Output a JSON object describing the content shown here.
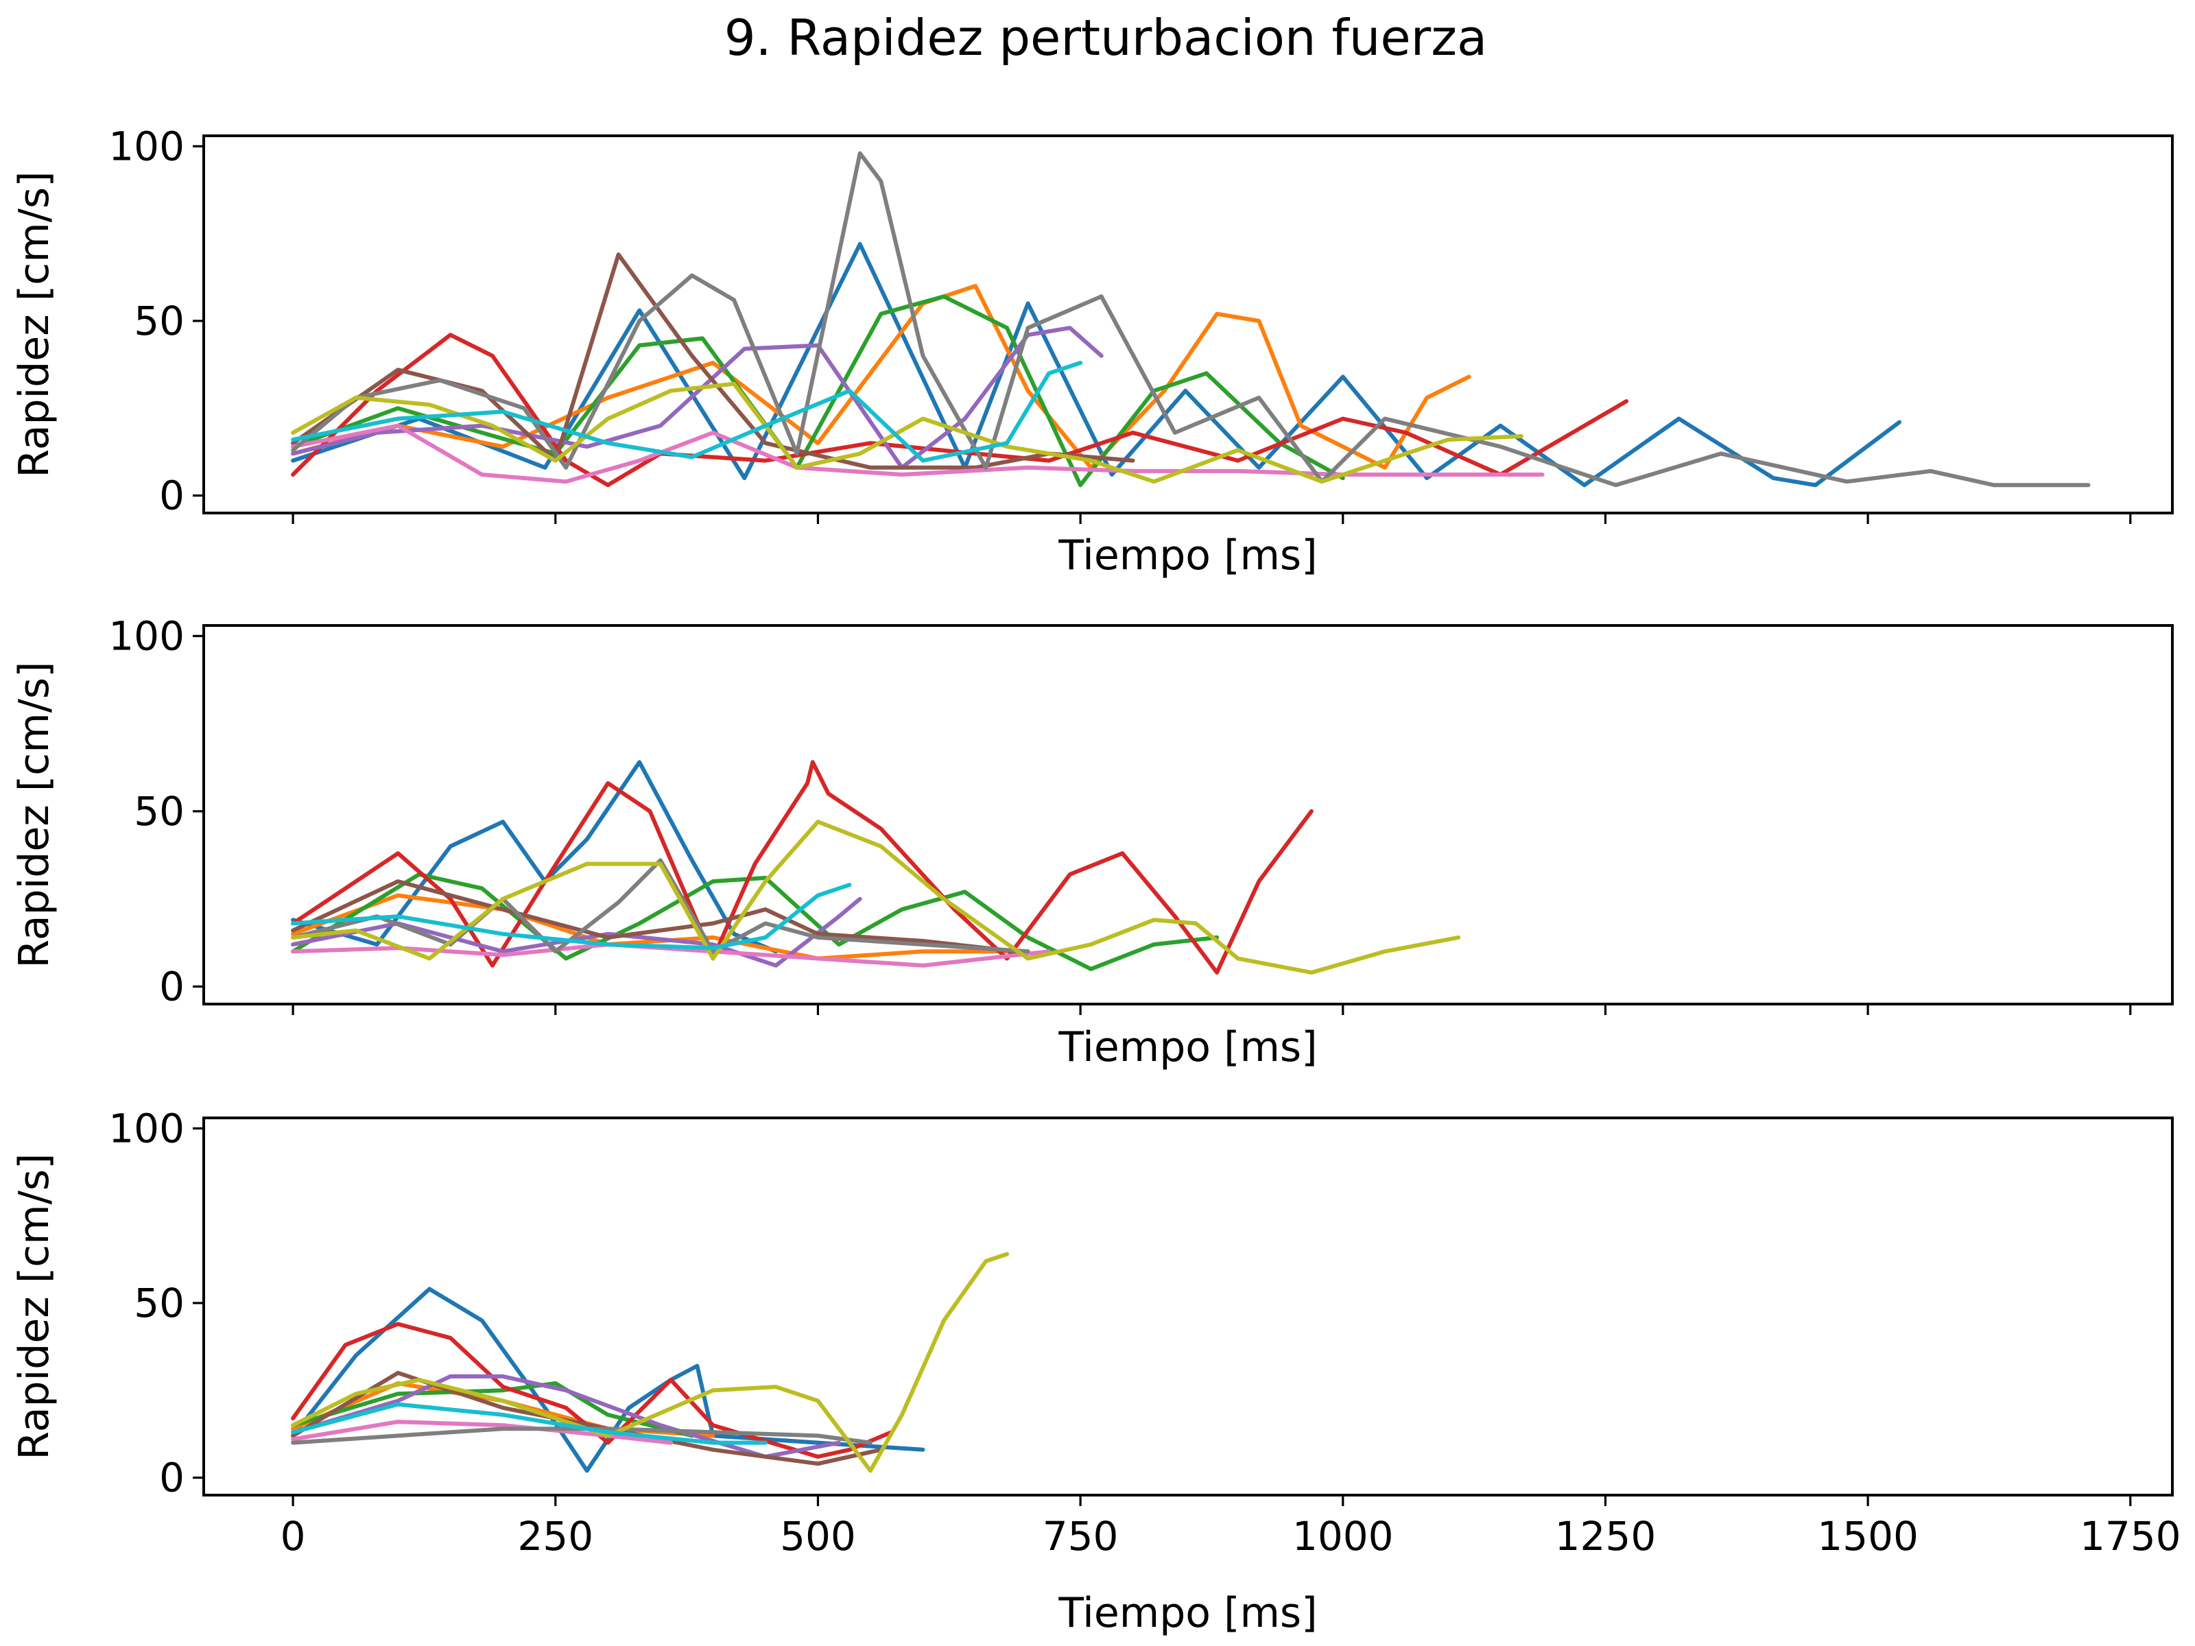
{
  "chart_data": {
    "type": "line",
    "title": "9. Rapidez perturbacion fuerza",
    "xlabel": "Tiempo [ms]",
    "ylabel": "Rapidez [cm/s]",
    "xlim": [
      -85,
      1790
    ],
    "ylim": [
      -5,
      103
    ],
    "x_ticks": [
      0,
      250,
      500,
      750,
      1000,
      1250,
      1500,
      1750
    ],
    "x_tick_labels": [
      "0",
      "250",
      "500",
      "750",
      "1000",
      "1250",
      "1500",
      "1750"
    ],
    "y_ticks": [
      0,
      50,
      100
    ],
    "y_tick_labels": [
      "0",
      "50",
      "100"
    ],
    "sharex": true,
    "grid": false,
    "panels": [
      {
        "series": [
          {
            "color": "#1f77b4",
            "x": [
              0,
              120,
              240,
              330,
              430,
              540,
              640,
              700,
              780,
              850,
              920,
              1000,
              1080,
              1150,
              1230,
              1320,
              1410,
              1450,
              1530
            ],
            "y": [
              10,
              22,
              8,
              53,
              5,
              72,
              8,
              55,
              6,
              30,
              8,
              34,
              5,
              20,
              3,
              22,
              5,
              3,
              21
            ]
          },
          {
            "color": "#ff7f0e",
            "x": [
              0,
              100,
              200,
              300,
              400,
              500,
              600,
              650,
              700,
              760,
              830,
              880,
              920,
              960,
              1040,
              1080,
              1120
            ],
            "y": [
              12,
              20,
              14,
              28,
              38,
              15,
              55,
              60,
              30,
              8,
              30,
              52,
              50,
              20,
              8,
              28,
              34
            ]
          },
          {
            "color": "#2ca02c",
            "x": [
              0,
              100,
              180,
              250,
              330,
              390,
              480,
              560,
              620,
              680,
              750,
              820,
              870,
              940,
              1000
            ],
            "y": [
              14,
              25,
              18,
              12,
              43,
              45,
              8,
              52,
              57,
              48,
              3,
              30,
              35,
              15,
              5
            ]
          },
          {
            "color": "#d62728",
            "x": [
              0,
              80,
              150,
              190,
              260,
              300,
              350,
              450,
              550,
              650,
              720,
              800,
              900,
              1000,
              1060,
              1150,
              1270
            ],
            "y": [
              6,
              30,
              46,
              40,
              10,
              3,
              12,
              10,
              15,
              12,
              10,
              18,
              10,
              22,
              18,
              6,
              27
            ]
          },
          {
            "color": "#9467bd",
            "x": [
              0,
              80,
              180,
              280,
              350,
              430,
              500,
              580,
              640,
              700,
              740,
              770
            ],
            "y": [
              12,
              18,
              20,
              14,
              20,
              42,
              43,
              8,
              22,
              46,
              48,
              40
            ]
          },
          {
            "color": "#8c564b",
            "x": [
              0,
              100,
              180,
              250,
              310,
              380,
              450,
              550,
              650,
              720,
              800
            ],
            "y": [
              15,
              36,
              30,
              10,
              69,
              40,
              15,
              8,
              8,
              12,
              10
            ]
          },
          {
            "color": "#e377c2",
            "x": [
              0,
              100,
              180,
              260,
              330,
              400,
              480,
              580,
              700,
              800,
              900,
              1000,
              1100,
              1190
            ],
            "y": [
              14,
              20,
              6,
              4,
              10,
              18,
              8,
              6,
              8,
              7,
              7,
              6,
              6,
              6
            ]
          },
          {
            "color": "#7f7f7f",
            "x": [
              0,
              60,
              140,
              220,
              260,
              330,
              380,
              420,
              480,
              540,
              560,
              600,
              660,
              700,
              770,
              840,
              920,
              980,
              1040,
              1150,
              1260,
              1360,
              1480,
              1560,
              1620,
              1710
            ],
            "y": [
              13,
              28,
              33,
              25,
              8,
              50,
              63,
              56,
              12,
              98,
              90,
              40,
              8,
              48,
              57,
              18,
              28,
              4,
              22,
              14,
              3,
              12,
              4,
              7,
              3,
              3
            ]
          },
          {
            "color": "#bcbd22",
            "x": [
              0,
              60,
              130,
              190,
              250,
              300,
              360,
              420,
              480,
              540,
              600,
              680,
              760,
              820,
              900,
              980,
              1040,
              1100,
              1170
            ],
            "y": [
              18,
              28,
              26,
              20,
              10,
              22,
              30,
              32,
              8,
              12,
              22,
              14,
              10,
              4,
              13,
              4,
              10,
              16,
              17
            ]
          },
          {
            "color": "#17becf",
            "x": [
              0,
              100,
              200,
              300,
              380,
              450,
              530,
              600,
              680,
              720,
              750
            ],
            "y": [
              16,
              22,
              24,
              15,
              11,
              20,
              30,
              10,
              15,
              35,
              38
            ]
          }
        ]
      },
      {
        "series": [
          {
            "color": "#1f77b4",
            "x": [
              0,
              80,
              150,
              200,
              240,
              280,
              330,
              380,
              420,
              460
            ],
            "y": [
              19,
              12,
              40,
              47,
              30,
              42,
              64,
              36,
              15,
              10
            ]
          },
          {
            "color": "#ff7f0e",
            "x": [
              0,
              100,
              200,
              300,
              400,
              500,
              600,
              700
            ],
            "y": [
              15,
              26,
              22,
              12,
              14,
              8,
              10,
              10
            ]
          },
          {
            "color": "#2ca02c",
            "x": [
              0,
              120,
              180,
              260,
              330,
              400,
              450,
              520,
              580,
              640,
              700,
              760,
              820,
              880
            ],
            "y": [
              10,
              32,
              28,
              8,
              18,
              30,
              31,
              12,
              22,
              27,
              14,
              5,
              12,
              14
            ]
          },
          {
            "color": "#d62728",
            "x": [
              0,
              60,
              100,
              150,
              190,
              240,
              300,
              340,
              400,
              440,
              490,
              495,
              510,
              560,
              630,
              680,
              740,
              790,
              840,
              880,
              920,
              970
            ],
            "y": [
              18,
              30,
              38,
              25,
              6,
              30,
              58,
              50,
              8,
              35,
              58,
              64,
              55,
              45,
              22,
              8,
              32,
              38,
              20,
              4,
              30,
              50
            ]
          },
          {
            "color": "#9467bd",
            "x": [
              0,
              100,
              200,
              300,
              400,
              460,
              520,
              540
            ],
            "y": [
              12,
              18,
              10,
              15,
              12,
              6,
              20,
              25
            ]
          },
          {
            "color": "#8c564b",
            "x": [
              0,
              100,
              200,
              300,
              400,
              450,
              500,
              600,
              690
            ],
            "y": [
              16,
              30,
              22,
              14,
              18,
              22,
              15,
              13,
              10
            ]
          },
          {
            "color": "#e377c2",
            "x": [
              0,
              100,
              200,
              300,
              400,
              500,
              600,
              720
            ],
            "y": [
              10,
              11,
              9,
              12,
              10,
              8,
              6,
              10
            ]
          },
          {
            "color": "#7f7f7f",
            "x": [
              0,
              80,
              150,
              200,
              250,
              310,
              350,
              400,
              450,
              500,
              600,
              700
            ],
            "y": [
              14,
              20,
              12,
              25,
              10,
              24,
              36,
              10,
              18,
              14,
              12,
              10
            ]
          },
          {
            "color": "#bcbd22",
            "x": [
              0,
              60,
              130,
              200,
              280,
              350,
              400,
              450,
              500,
              560,
              620,
              700,
              760,
              820,
              860,
              900,
              970,
              1040,
              1110
            ],
            "y": [
              14,
              16,
              8,
              25,
              35,
              35,
              8,
              30,
              47,
              40,
              25,
              8,
              12,
              19,
              18,
              8,
              4,
              10,
              14
            ]
          },
          {
            "color": "#17becf",
            "x": [
              0,
              100,
              200,
              300,
              400,
              450,
              500,
              530
            ],
            "y": [
              18,
              20,
              15,
              12,
              11,
              14,
              26,
              29
            ]
          }
        ]
      },
      {
        "series": [
          {
            "color": "#1f77b4",
            "x": [
              0,
              60,
              130,
              180,
              240,
              280,
              320,
              360,
              385,
              400,
              500,
              600
            ],
            "y": [
              12,
              35,
              54,
              45,
              20,
              2,
              20,
              28,
              32,
              12,
              10,
              8
            ]
          },
          {
            "color": "#ff7f0e",
            "x": [
              0,
              100,
              200,
              300,
              400
            ],
            "y": [
              14,
              27,
              22,
              14,
              12
            ]
          },
          {
            "color": "#2ca02c",
            "x": [
              0,
              100,
              200,
              250,
              300,
              380
            ],
            "y": [
              15,
              24,
              25,
              27,
              18,
              12
            ]
          },
          {
            "color": "#d62728",
            "x": [
              0,
              50,
              100,
              150,
              200,
              260,
              300,
              360,
              400,
              500,
              530,
              570
            ],
            "y": [
              17,
              38,
              44,
              40,
              26,
              20,
              10,
              28,
              15,
              6,
              8,
              13
            ]
          },
          {
            "color": "#9467bd",
            "x": [
              0,
              100,
              150,
              200,
              260,
              350,
              450,
              520
            ],
            "y": [
              13,
              22,
              29,
              29,
              25,
              15,
              6,
              10
            ]
          },
          {
            "color": "#8c564b",
            "x": [
              0,
              100,
              200,
              300,
              400,
              500,
              560
            ],
            "y": [
              12,
              30,
              20,
              14,
              8,
              4,
              8
            ]
          },
          {
            "color": "#e377c2",
            "x": [
              0,
              100,
              200,
              300,
              360
            ],
            "y": [
              11,
              16,
              15,
              12,
              10
            ]
          },
          {
            "color": "#7f7f7f",
            "x": [
              0,
              100,
              200,
              300,
              400,
              500,
              550
            ],
            "y": [
              10,
              12,
              14,
              14,
              13,
              12,
              10
            ]
          },
          {
            "color": "#bcbd22",
            "x": [
              0,
              60,
              120,
              200,
              300,
              400,
              460,
              500,
              530,
              550,
              580,
              620,
              660,
              680
            ],
            "y": [
              15,
              24,
              28,
              22,
              12,
              25,
              26,
              22,
              10,
              2,
              18,
              45,
              62,
              64
            ]
          },
          {
            "color": "#17becf",
            "x": [
              0,
              100,
              200,
              300,
              400,
              450
            ],
            "y": [
              13,
              21,
              18,
              13,
              10,
              10
            ]
          }
        ]
      }
    ]
  }
}
